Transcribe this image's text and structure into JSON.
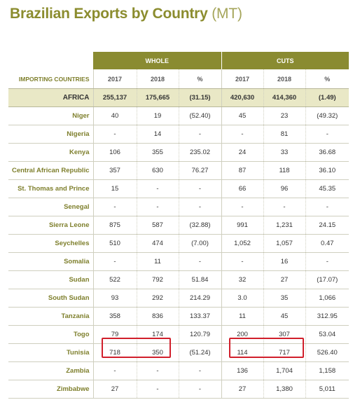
{
  "title": "Brazilian Exports by Country",
  "unit": "(MT)",
  "group_whole": "WHOLE",
  "group_cuts": "CUTS",
  "header": {
    "name": "IMPORTING COUNTRIES",
    "whole_2017": "2017",
    "whole_2018": "2018",
    "whole_pct": "%",
    "cuts_2017": "2017",
    "cuts_2018": "2018",
    "cuts_pct": "%"
  },
  "africa": {
    "name": "AFRICA",
    "w17": "255,137",
    "w18": "175,665",
    "wp": "(31.15)",
    "c17": "420,630",
    "c18": "414,360",
    "cp": "(1.49)"
  },
  "rows": [
    {
      "name": "Niger",
      "w17": "40",
      "w18": "19",
      "wp": "(52.40)",
      "c17": "45",
      "c18": "23",
      "cp": "(49.32)"
    },
    {
      "name": "Nigeria",
      "w17": "-",
      "w18": "14",
      "wp": "-",
      "c17": "-",
      "c18": "81",
      "cp": "-"
    },
    {
      "name": "Kenya",
      "w17": "106",
      "w18": "355",
      "wp": "235.02",
      "c17": "24",
      "c18": "33",
      "cp": "36.68"
    },
    {
      "name": "Central African Republic",
      "w17": "357",
      "w18": "630",
      "wp": "76.27",
      "c17": "87",
      "c18": "118",
      "cp": "36.10"
    },
    {
      "name": "St. Thomas and Prince",
      "w17": "15",
      "w18": "-",
      "wp": "-",
      "c17": "66",
      "c18": "96",
      "cp": "45.35"
    },
    {
      "name": "Senegal",
      "w17": "-",
      "w18": "-",
      "wp": "-",
      "c17": "-",
      "c18": "-",
      "cp": "-"
    },
    {
      "name": "Sierra Leone",
      "w17": "875",
      "w18": "587",
      "wp": "(32.88)",
      "c17": "991",
      "c18": "1,231",
      "cp": "24.15"
    },
    {
      "name": "Seychelles",
      "w17": "510",
      "w18": "474",
      "wp": "(7.00)",
      "c17": "1,052",
      "c18": "1,057",
      "cp": "0.47"
    },
    {
      "name": "Somalia",
      "w17": "-",
      "w18": "11",
      "wp": "-",
      "c17": "-",
      "c18": "16",
      "cp": "-"
    },
    {
      "name": "Sudan",
      "w17": "522",
      "w18": "792",
      "wp": "51.84",
      "c17": "32",
      "c18": "27",
      "cp": "(17.07)"
    },
    {
      "name": "South Sudan",
      "w17": "93",
      "w18": "292",
      "wp": "214.29",
      "c17": "3.0",
      "c18": "35",
      "cp": "1,066"
    },
    {
      "name": "Tanzania",
      "w17": "358",
      "w18": "836",
      "wp": "133.37",
      "c17": "11",
      "c18": "45",
      "cp": "312.95"
    },
    {
      "name": "Togo",
      "w17": "79",
      "w18": "174",
      "wp": "120.79",
      "c17": "200",
      "c18": "307",
      "cp": "53.04"
    },
    {
      "name": "Tunisia",
      "w17": "718",
      "w18": "350",
      "wp": "(51.24)",
      "c17": "114",
      "c18": "717",
      "cp": "526.40"
    },
    {
      "name": "Zambia",
      "w17": "-",
      "w18": "-",
      "wp": "-",
      "c17": "136",
      "c18": "1,704",
      "cp": "1,158"
    },
    {
      "name": "Zimbabwe",
      "w17": "27",
      "w18": "-",
      "wp": "-",
      "c17": "27",
      "c18": "1,380",
      "cp": "5,011"
    }
  ],
  "highlight_color": "#d11f2b"
}
